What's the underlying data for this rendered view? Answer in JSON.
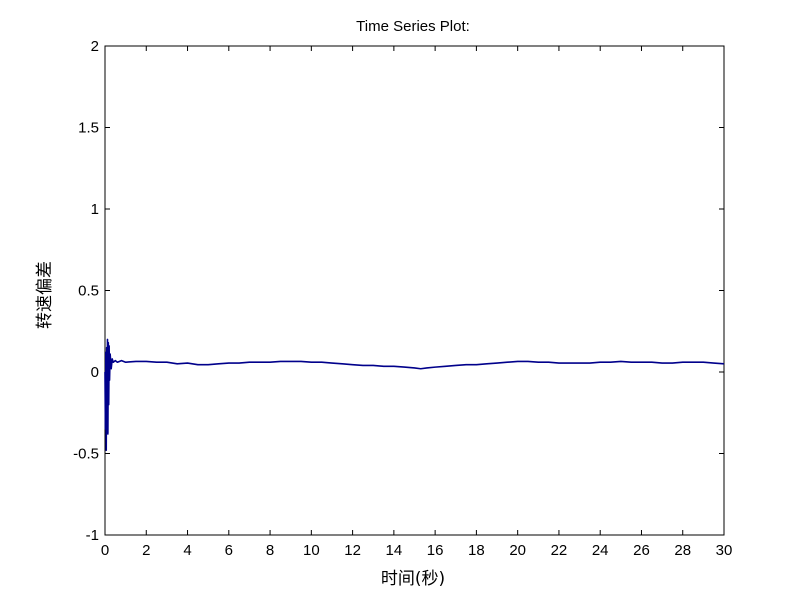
{
  "chart_data": {
    "type": "line",
    "title": "Time Series Plot:",
    "xlabel": "时间(秒)",
    "ylabel": "转速偏差",
    "xlim": [
      0,
      30
    ],
    "ylim": [
      -1,
      2
    ],
    "x_ticks": [
      "0",
      "2",
      "4",
      "6",
      "8",
      "10",
      "12",
      "14",
      "16",
      "18",
      "20",
      "22",
      "24",
      "26",
      "28",
      "30"
    ],
    "y_ticks": [
      "-1",
      "-0.5",
      "0",
      "0.5",
      "1",
      "1.5",
      "2"
    ],
    "grid": false,
    "series": [
      {
        "color": "#00008b",
        "points": [
          [
            0.0,
            0.0
          ],
          [
            0.02,
            -0.35
          ],
          [
            0.04,
            0.12
          ],
          [
            0.06,
            -0.48
          ],
          [
            0.08,
            0.15
          ],
          [
            0.1,
            -0.3
          ],
          [
            0.12,
            0.2
          ],
          [
            0.14,
            -0.38
          ],
          [
            0.16,
            0.18
          ],
          [
            0.18,
            -0.2
          ],
          [
            0.2,
            0.16
          ],
          [
            0.22,
            -0.05
          ],
          [
            0.25,
            0.11
          ],
          [
            0.3,
            0.02
          ],
          [
            0.35,
            0.08
          ],
          [
            0.4,
            0.06
          ],
          [
            0.5,
            0.07
          ],
          [
            0.6,
            0.06
          ],
          [
            0.8,
            0.07
          ],
          [
            1,
            0.06
          ],
          [
            1.5,
            0.065
          ],
          [
            2,
            0.065
          ],
          [
            2.5,
            0.06
          ],
          [
            3,
            0.06
          ],
          [
            3.5,
            0.05
          ],
          [
            4,
            0.055
          ],
          [
            4.5,
            0.045
          ],
          [
            5,
            0.045
          ],
          [
            5.5,
            0.05
          ],
          [
            6,
            0.055
          ],
          [
            6.5,
            0.055
          ],
          [
            7,
            0.06
          ],
          [
            7.5,
            0.06
          ],
          [
            8,
            0.06
          ],
          [
            8.5,
            0.065
          ],
          [
            9,
            0.065
          ],
          [
            9.5,
            0.065
          ],
          [
            10,
            0.06
          ],
          [
            10.5,
            0.06
          ],
          [
            11,
            0.055
          ],
          [
            11.5,
            0.05
          ],
          [
            12,
            0.045
          ],
          [
            12.5,
            0.04
          ],
          [
            13,
            0.04
          ],
          [
            13.5,
            0.035
          ],
          [
            14,
            0.035
          ],
          [
            14.5,
            0.03
          ],
          [
            15,
            0.025
          ],
          [
            15.3,
            0.02
          ],
          [
            15.6,
            0.025
          ],
          [
            16,
            0.03
          ],
          [
            16.5,
            0.035
          ],
          [
            17,
            0.04
          ],
          [
            17.5,
            0.045
          ],
          [
            18,
            0.045
          ],
          [
            18.5,
            0.05
          ],
          [
            19,
            0.055
          ],
          [
            19.5,
            0.06
          ],
          [
            20,
            0.065
          ],
          [
            20.5,
            0.065
          ],
          [
            21,
            0.06
          ],
          [
            21.5,
            0.06
          ],
          [
            22,
            0.055
          ],
          [
            22.5,
            0.055
          ],
          [
            23,
            0.055
          ],
          [
            23.5,
            0.055
          ],
          [
            24,
            0.06
          ],
          [
            24.5,
            0.06
          ],
          [
            25,
            0.065
          ],
          [
            25.5,
            0.06
          ],
          [
            26,
            0.06
          ],
          [
            26.5,
            0.06
          ],
          [
            27,
            0.055
          ],
          [
            27.5,
            0.055
          ],
          [
            28,
            0.06
          ],
          [
            28.5,
            0.06
          ],
          [
            29,
            0.06
          ],
          [
            29.5,
            0.055
          ],
          [
            30,
            0.05
          ]
        ]
      }
    ]
  }
}
